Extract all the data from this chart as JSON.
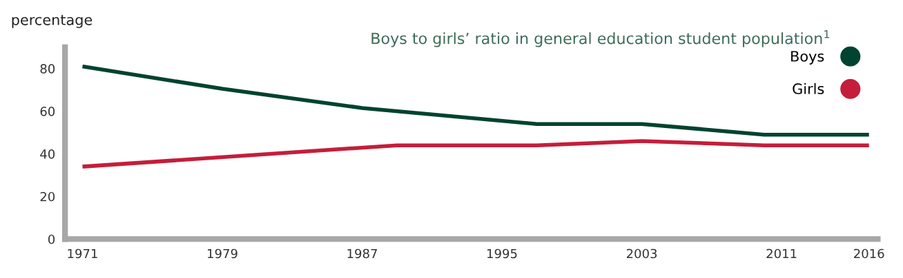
{
  "chart_data": {
    "type": "line",
    "title": "Boys to girls’ ratio in general education student population$^{1}$",
    "ylabel": "percentage",
    "series": [
      {
        "name": "Boys",
        "color": "#00432f",
        "x": [
          1971,
          1979,
          1987,
          1997,
          2003,
          2010,
          2016
        ],
        "values": [
          81,
          70.5,
          61.5,
          54,
          54,
          49,
          49
        ]
      },
      {
        "name": "Girls",
        "color": "#c41e3a",
        "x": [
          1971,
          1989,
          1997,
          2003,
          2010,
          2016
        ],
        "values": [
          34,
          44,
          44,
          46,
          44,
          44
        ]
      }
    ],
    "xlim": [
      1970,
      2016.5
    ],
    "xticks": [
      1971,
      1979,
      1987,
      1995,
      2003,
      2011,
      2016
    ],
    "ylim": [
      0,
      90
    ],
    "yticks": [
      0,
      20,
      40,
      60,
      80
    ],
    "grid": false,
    "legend": "top right",
    "marker": "none",
    "line_style": "solid"
  }
}
